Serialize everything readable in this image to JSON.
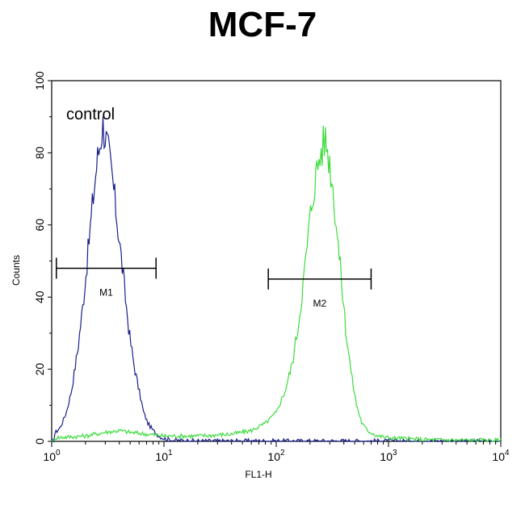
{
  "chart_data": {
    "type": "line",
    "title": "MCF-7",
    "xlabel": "FL1-H",
    "ylabel": "Counts",
    "x_scale": "log",
    "xlim": [
      1,
      10000
    ],
    "ylim": [
      0,
      100
    ],
    "x_ticks": [
      {
        "base": "10",
        "exp": "0",
        "value": 1
      },
      {
        "base": "10",
        "exp": "1",
        "value": 10
      },
      {
        "base": "10",
        "exp": "2",
        "value": 100
      },
      {
        "base": "10",
        "exp": "3",
        "value": 1000
      },
      {
        "base": "10",
        "exp": "4",
        "value": 10000
      }
    ],
    "y_ticks": [
      "0",
      "20",
      "40",
      "60",
      "80",
      "100"
    ],
    "grid": false,
    "annotation": "control",
    "gates": [
      {
        "label": "M1",
        "x_start": 1.1,
        "x_end": 8.5,
        "y": 48
      },
      {
        "label": "M2",
        "x_start": 85,
        "x_end": 700,
        "y": 45
      }
    ],
    "series": [
      {
        "color": "#1a1f8a",
        "points": [
          [
            1.05,
            2
          ],
          [
            1.2,
            4
          ],
          [
            1.35,
            8
          ],
          [
            1.5,
            14
          ],
          [
            1.7,
            25
          ],
          [
            1.9,
            38
          ],
          [
            2.1,
            52
          ],
          [
            2.3,
            65
          ],
          [
            2.5,
            76
          ],
          [
            2.7,
            83
          ],
          [
            2.85,
            88
          ],
          [
            3.0,
            85
          ],
          [
            3.2,
            80
          ],
          [
            3.5,
            72
          ],
          [
            3.8,
            62
          ],
          [
            4.2,
            50
          ],
          [
            4.6,
            38
          ],
          [
            5.0,
            28
          ],
          [
            5.5,
            20
          ],
          [
            6.0,
            14
          ],
          [
            6.6,
            8
          ],
          [
            7.2,
            5
          ],
          [
            8.0,
            3
          ],
          [
            9.0,
            1.5
          ],
          [
            10,
            0.8
          ],
          [
            12,
            0.3
          ],
          [
            20,
            0.1
          ],
          [
            50,
            0.1
          ],
          [
            100,
            0.1
          ],
          [
            1000,
            0.1
          ],
          [
            10000,
            0
          ]
        ]
      },
      {
        "color": "#3ddc3d",
        "points": [
          [
            1.05,
            1
          ],
          [
            2,
            1.5
          ],
          [
            3,
            2.5
          ],
          [
            4,
            3
          ],
          [
            5,
            2.5
          ],
          [
            7,
            2
          ],
          [
            10,
            1.5
          ],
          [
            20,
            1.5
          ],
          [
            40,
            2
          ],
          [
            60,
            3
          ],
          [
            80,
            5
          ],
          [
            100,
            8
          ],
          [
            120,
            14
          ],
          [
            140,
            22
          ],
          [
            160,
            34
          ],
          [
            180,
            48
          ],
          [
            200,
            62
          ],
          [
            220,
            72
          ],
          [
            240,
            78
          ],
          [
            260,
            82
          ],
          [
            275,
            84
          ],
          [
            290,
            80
          ],
          [
            310,
            74
          ],
          [
            340,
            62
          ],
          [
            380,
            45
          ],
          [
            420,
            30
          ],
          [
            470,
            18
          ],
          [
            520,
            10
          ],
          [
            580,
            5
          ],
          [
            650,
            3
          ],
          [
            800,
            1.5
          ],
          [
            1000,
            1
          ],
          [
            2000,
            0.5
          ],
          [
            5000,
            0.3
          ],
          [
            10000,
            0.3
          ]
        ]
      }
    ]
  },
  "footer": ""
}
